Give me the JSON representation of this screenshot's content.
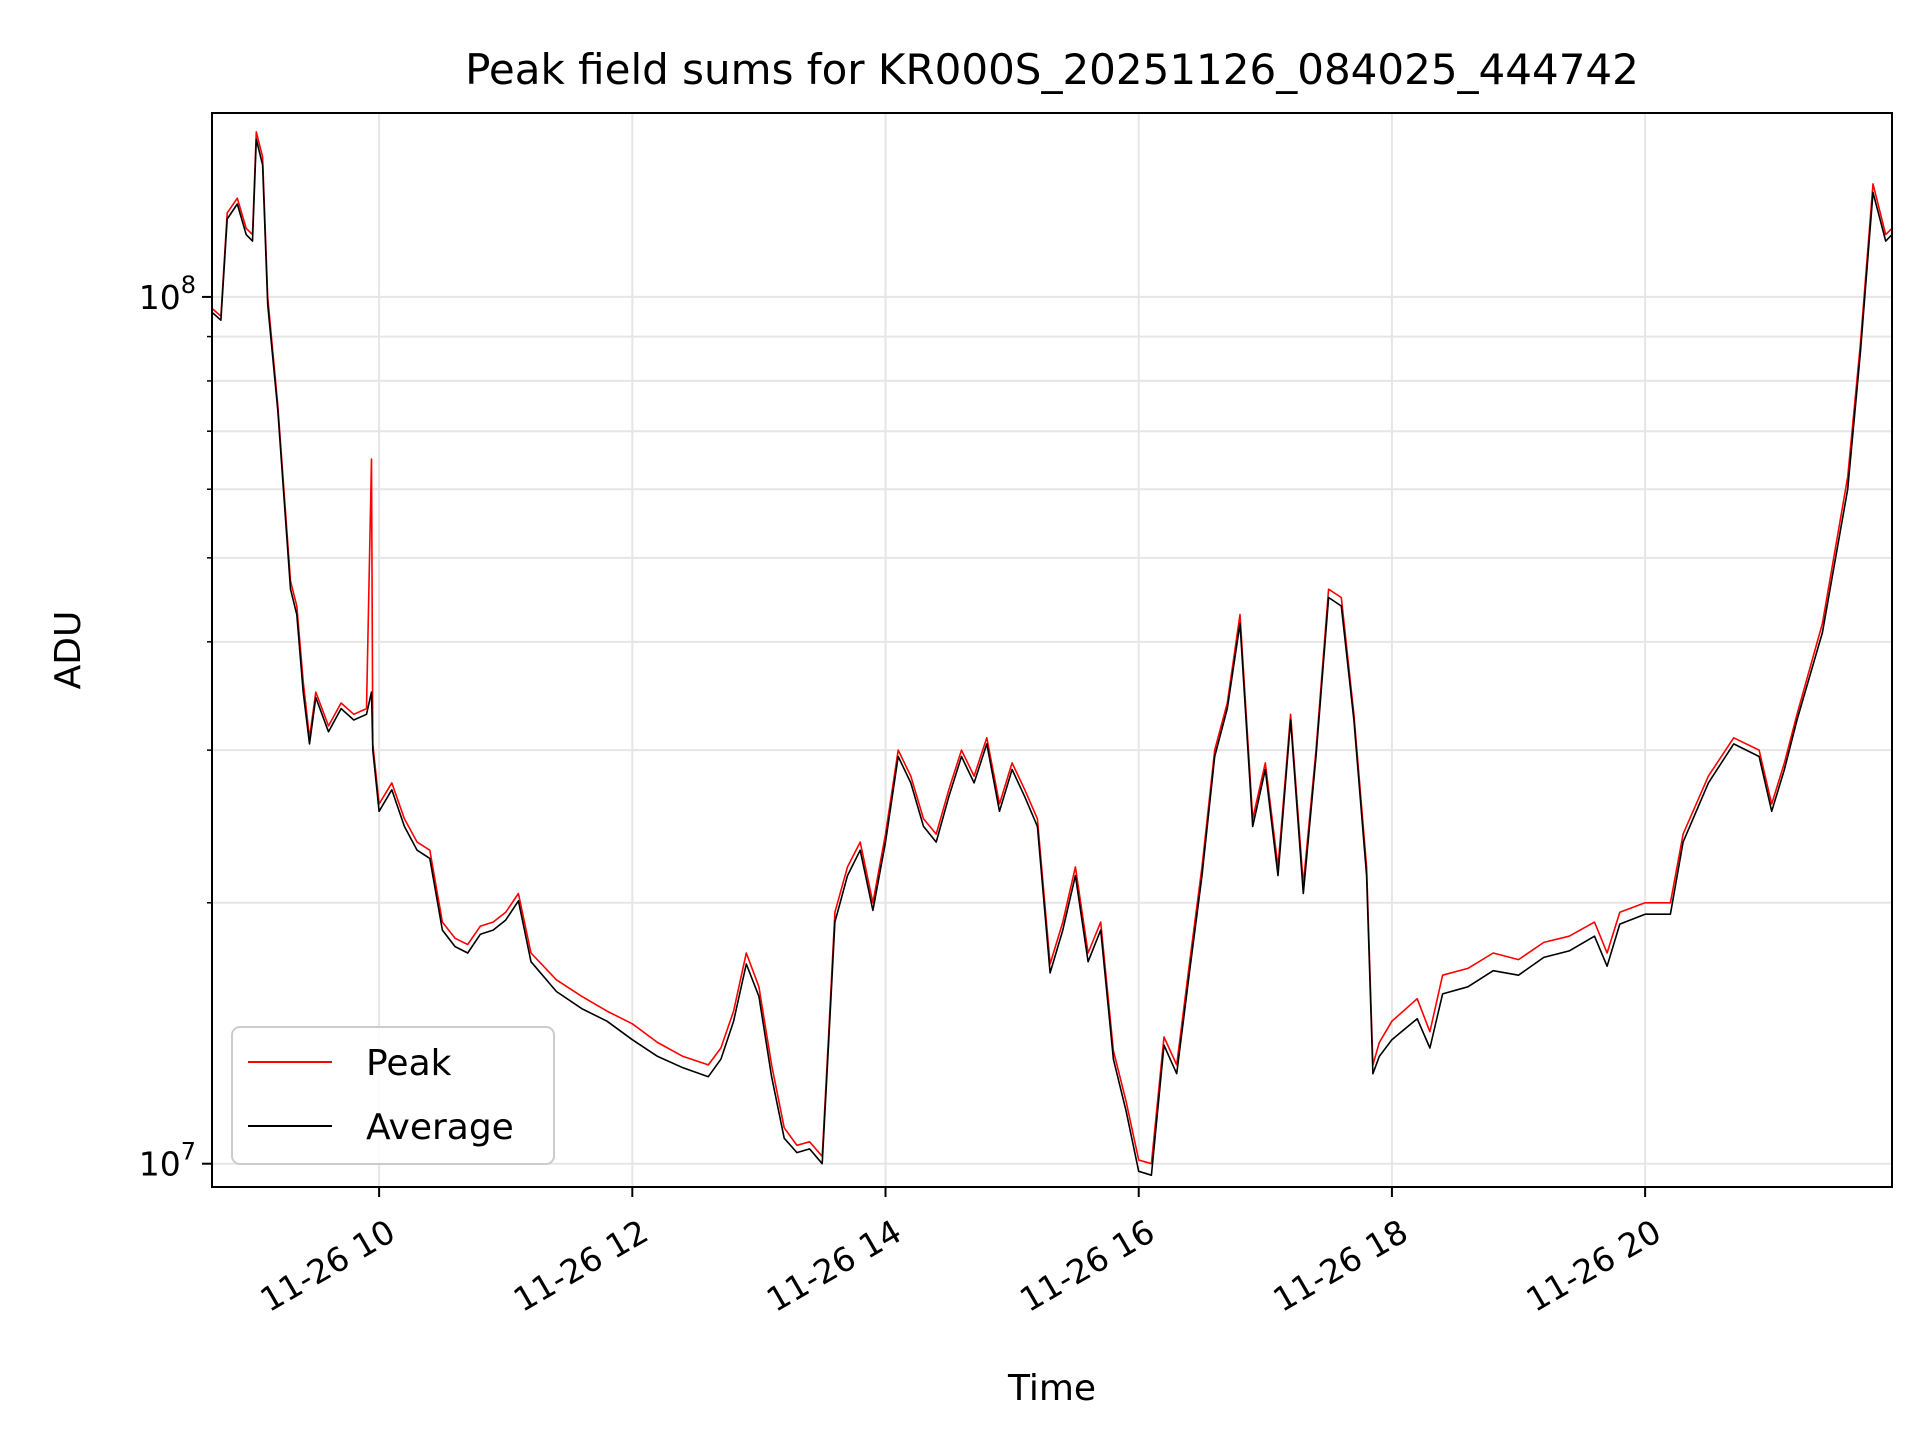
{
  "chart_data": {
    "type": "line",
    "title": "Peak field sums for KR000S_20251126_084025_444742",
    "xlabel": "Time",
    "ylabel": "ADU",
    "x_unit": "hours",
    "xlim": [
      8.68,
      21.95
    ],
    "ylim": [
      9400000,
      163000000
    ],
    "y_scale": "log",
    "grid": true,
    "legend_position": "lower-left",
    "x_ticks": [
      {
        "value": 10,
        "label": "11-26 10"
      },
      {
        "value": 12,
        "label": "11-26 12"
      },
      {
        "value": 14,
        "label": "11-26 14"
      },
      {
        "value": 16,
        "label": "11-26 16"
      },
      {
        "value": 18,
        "label": "11-26 18"
      },
      {
        "value": 20,
        "label": "11-26 20"
      }
    ],
    "y_ticks": [
      {
        "value": 10000000,
        "base": "10",
        "exp": "7"
      },
      {
        "value": 100000000,
        "base": "10",
        "exp": "8"
      }
    ],
    "series": [
      {
        "name": "Peak",
        "color": "#ff0000",
        "points": [
          [
            8.68,
            97000000
          ],
          [
            8.75,
            95000000
          ],
          [
            8.8,
            125000000
          ],
          [
            8.88,
            130000000
          ],
          [
            8.95,
            120000000
          ],
          [
            9.0,
            118000000
          ],
          [
            9.03,
            155000000
          ],
          [
            9.08,
            145000000
          ],
          [
            9.12,
            100000000
          ],
          [
            9.2,
            75000000
          ],
          [
            9.3,
            47000000
          ],
          [
            9.35,
            44000000
          ],
          [
            9.4,
            36000000
          ],
          [
            9.45,
            31000000
          ],
          [
            9.5,
            35000000
          ],
          [
            9.6,
            32000000
          ],
          [
            9.7,
            34000000
          ],
          [
            9.8,
            33000000
          ],
          [
            9.9,
            33500000
          ],
          [
            9.94,
            65000000
          ],
          [
            9.95,
            30500000
          ],
          [
            10.0,
            26000000
          ],
          [
            10.1,
            27500000
          ],
          [
            10.2,
            25000000
          ],
          [
            10.3,
            23500000
          ],
          [
            10.4,
            23000000
          ],
          [
            10.5,
            19000000
          ],
          [
            10.6,
            18200000
          ],
          [
            10.7,
            17900000
          ],
          [
            10.8,
            18800000
          ],
          [
            10.9,
            19000000
          ],
          [
            11.0,
            19500000
          ],
          [
            11.1,
            20500000
          ],
          [
            11.2,
            17500000
          ],
          [
            11.4,
            16300000
          ],
          [
            11.6,
            15600000
          ],
          [
            11.8,
            15000000
          ],
          [
            12.0,
            14500000
          ],
          [
            12.2,
            13800000
          ],
          [
            12.4,
            13300000
          ],
          [
            12.6,
            13000000
          ],
          [
            12.7,
            13600000
          ],
          [
            12.8,
            15000000
          ],
          [
            12.9,
            17500000
          ],
          [
            13.0,
            16000000
          ],
          [
            13.1,
            13000000
          ],
          [
            13.2,
            11000000
          ],
          [
            13.3,
            10500000
          ],
          [
            13.4,
            10600000
          ],
          [
            13.5,
            10200000
          ],
          [
            13.55,
            14000000
          ],
          [
            13.6,
            19500000
          ],
          [
            13.7,
            22000000
          ],
          [
            13.8,
            23500000
          ],
          [
            13.9,
            20000000
          ],
          [
            14.0,
            24000000
          ],
          [
            14.1,
            30000000
          ],
          [
            14.2,
            28000000
          ],
          [
            14.3,
            25000000
          ],
          [
            14.4,
            24000000
          ],
          [
            14.5,
            27000000
          ],
          [
            14.6,
            30000000
          ],
          [
            14.7,
            28000000
          ],
          [
            14.8,
            31000000
          ],
          [
            14.9,
            26000000
          ],
          [
            15.0,
            29000000
          ],
          [
            15.1,
            27000000
          ],
          [
            15.2,
            25000000
          ],
          [
            15.3,
            17000000
          ],
          [
            15.4,
            19000000
          ],
          [
            15.5,
            22000000
          ],
          [
            15.6,
            17500000
          ],
          [
            15.7,
            19000000
          ],
          [
            15.8,
            13500000
          ],
          [
            15.9,
            11800000
          ],
          [
            16.0,
            10100000
          ],
          [
            16.1,
            10000000
          ],
          [
            16.2,
            14000000
          ],
          [
            16.3,
            13000000
          ],
          [
            16.4,
            17000000
          ],
          [
            16.5,
            22000000
          ],
          [
            16.6,
            30000000
          ],
          [
            16.7,
            34000000
          ],
          [
            16.8,
            43000000
          ],
          [
            16.9,
            25000000
          ],
          [
            17.0,
            29000000
          ],
          [
            17.1,
            22000000
          ],
          [
            17.2,
            33000000
          ],
          [
            17.3,
            21000000
          ],
          [
            17.4,
            30000000
          ],
          [
            17.5,
            46000000
          ],
          [
            17.6,
            45000000
          ],
          [
            17.7,
            33000000
          ],
          [
            17.8,
            22000000
          ],
          [
            17.85,
            13000000
          ],
          [
            17.9,
            13800000
          ],
          [
            18.0,
            14600000
          ],
          [
            18.2,
            15500000
          ],
          [
            18.3,
            14200000
          ],
          [
            18.4,
            16500000
          ],
          [
            18.6,
            16800000
          ],
          [
            18.8,
            17500000
          ],
          [
            19.0,
            17200000
          ],
          [
            19.2,
            18000000
          ],
          [
            19.4,
            18300000
          ],
          [
            19.6,
            19000000
          ],
          [
            19.7,
            17500000
          ],
          [
            19.8,
            19500000
          ],
          [
            20.0,
            20000000
          ],
          [
            20.2,
            20000000
          ],
          [
            20.3,
            24000000
          ],
          [
            20.5,
            28000000
          ],
          [
            20.7,
            31000000
          ],
          [
            20.9,
            30000000
          ],
          [
            21.0,
            26000000
          ],
          [
            21.1,
            29000000
          ],
          [
            21.2,
            33000000
          ],
          [
            21.4,
            42000000
          ],
          [
            21.6,
            62000000
          ],
          [
            21.7,
            88000000
          ],
          [
            21.8,
            135000000
          ],
          [
            21.9,
            118000000
          ],
          [
            21.95,
            120000000
          ]
        ]
      },
      {
        "name": "Average",
        "color": "#000000",
        "points": [
          [
            8.68,
            96000000
          ],
          [
            8.75,
            94000000
          ],
          [
            8.8,
            123000000
          ],
          [
            8.88,
            128000000
          ],
          [
            8.95,
            118000000
          ],
          [
            9.0,
            116000000
          ],
          [
            9.03,
            152000000
          ],
          [
            9.08,
            142000000
          ],
          [
            9.12,
            98000000
          ],
          [
            9.2,
            74000000
          ],
          [
            9.3,
            46000000
          ],
          [
            9.35,
            43000000
          ],
          [
            9.4,
            35000000
          ],
          [
            9.45,
            30500000
          ],
          [
            9.5,
            34500000
          ],
          [
            9.6,
            31500000
          ],
          [
            9.7,
            33500000
          ],
          [
            9.8,
            32500000
          ],
          [
            9.9,
            33000000
          ],
          [
            9.94,
            35000000
          ],
          [
            9.95,
            30000000
          ],
          [
            10.0,
            25500000
          ],
          [
            10.1,
            27000000
          ],
          [
            10.2,
            24500000
          ],
          [
            10.3,
            23000000
          ],
          [
            10.4,
            22500000
          ],
          [
            10.5,
            18600000
          ],
          [
            10.6,
            17800000
          ],
          [
            10.7,
            17500000
          ],
          [
            10.8,
            18400000
          ],
          [
            10.9,
            18600000
          ],
          [
            11.0,
            19100000
          ],
          [
            11.1,
            20100000
          ],
          [
            11.2,
            17100000
          ],
          [
            11.4,
            15800000
          ],
          [
            11.6,
            15100000
          ],
          [
            11.8,
            14600000
          ],
          [
            12.0,
            13900000
          ],
          [
            12.2,
            13300000
          ],
          [
            12.4,
            12900000
          ],
          [
            12.6,
            12600000
          ],
          [
            12.7,
            13200000
          ],
          [
            12.8,
            14600000
          ],
          [
            12.9,
            17000000
          ],
          [
            13.0,
            15600000
          ],
          [
            13.1,
            12600000
          ],
          [
            13.2,
            10700000
          ],
          [
            13.3,
            10300000
          ],
          [
            13.4,
            10400000
          ],
          [
            13.5,
            10000000
          ],
          [
            13.55,
            13700000
          ],
          [
            13.6,
            19000000
          ],
          [
            13.7,
            21500000
          ],
          [
            13.8,
            23000000
          ],
          [
            13.9,
            19600000
          ],
          [
            14.0,
            23500000
          ],
          [
            14.1,
            29500000
          ],
          [
            14.2,
            27500000
          ],
          [
            14.3,
            24500000
          ],
          [
            14.4,
            23500000
          ],
          [
            14.5,
            26500000
          ],
          [
            14.6,
            29500000
          ],
          [
            14.7,
            27500000
          ],
          [
            14.8,
            30500000
          ],
          [
            14.9,
            25500000
          ],
          [
            15.0,
            28500000
          ],
          [
            15.1,
            26500000
          ],
          [
            15.2,
            24500000
          ],
          [
            15.3,
            16600000
          ],
          [
            15.4,
            18600000
          ],
          [
            15.5,
            21500000
          ],
          [
            15.6,
            17100000
          ],
          [
            15.7,
            18600000
          ],
          [
            15.8,
            13200000
          ],
          [
            15.9,
            11500000
          ],
          [
            16.0,
            9800000
          ],
          [
            16.1,
            9700000
          ],
          [
            16.2,
            13700000
          ],
          [
            16.3,
            12700000
          ],
          [
            16.4,
            16600000
          ],
          [
            16.5,
            21500000
          ],
          [
            16.6,
            29500000
          ],
          [
            16.7,
            33500000
          ],
          [
            16.8,
            42000000
          ],
          [
            16.9,
            24500000
          ],
          [
            17.0,
            28500000
          ],
          [
            17.1,
            21500000
          ],
          [
            17.2,
            32500000
          ],
          [
            17.3,
            20500000
          ],
          [
            17.4,
            29500000
          ],
          [
            17.5,
            45000000
          ],
          [
            17.6,
            44000000
          ],
          [
            17.7,
            32500000
          ],
          [
            17.8,
            21500000
          ],
          [
            17.85,
            12700000
          ],
          [
            17.9,
            13300000
          ],
          [
            18.0,
            13900000
          ],
          [
            18.2,
            14700000
          ],
          [
            18.3,
            13600000
          ],
          [
            18.4,
            15700000
          ],
          [
            18.6,
            16000000
          ],
          [
            18.8,
            16700000
          ],
          [
            19.0,
            16500000
          ],
          [
            19.2,
            17300000
          ],
          [
            19.4,
            17600000
          ],
          [
            19.6,
            18300000
          ],
          [
            19.7,
            16900000
          ],
          [
            19.8,
            18900000
          ],
          [
            20.0,
            19400000
          ],
          [
            20.2,
            19400000
          ],
          [
            20.3,
            23500000
          ],
          [
            20.5,
            27500000
          ],
          [
            20.7,
            30500000
          ],
          [
            20.9,
            29500000
          ],
          [
            21.0,
            25500000
          ],
          [
            21.1,
            28500000
          ],
          [
            21.2,
            32500000
          ],
          [
            21.4,
            41000000
          ],
          [
            21.6,
            60000000
          ],
          [
            21.7,
            86000000
          ],
          [
            21.8,
            132000000
          ],
          [
            21.9,
            116000000
          ],
          [
            21.95,
            118000000
          ]
        ]
      }
    ]
  }
}
